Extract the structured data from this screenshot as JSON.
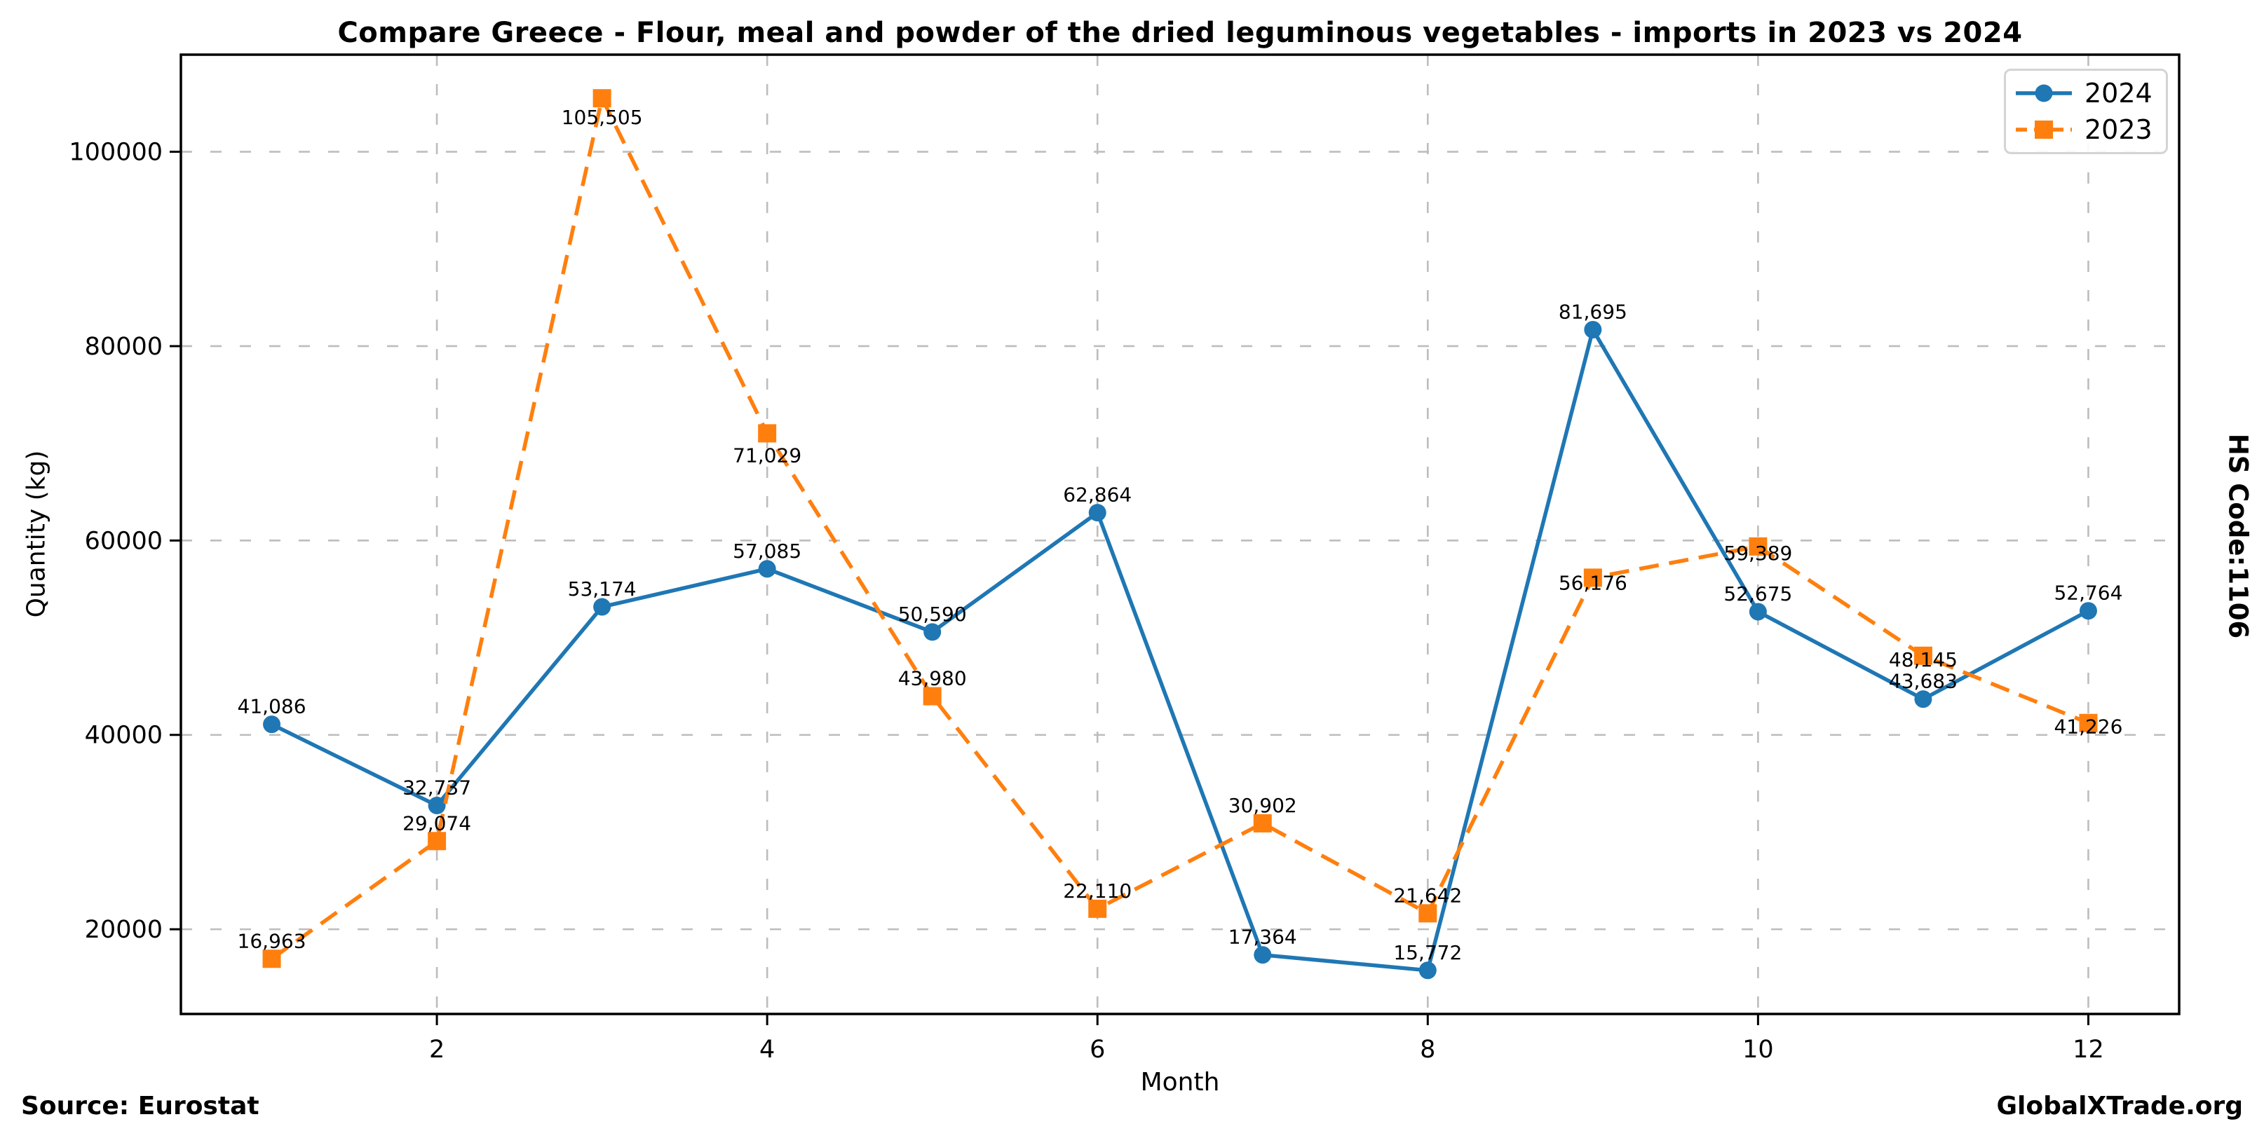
{
  "title_note": "",
  "footer": {
    "source": "Source: Eurostat",
    "brand": "GlobalXTrade.org"
  },
  "side_label": "HS Code:1106",
  "colors": {
    "series_2024": "#1f77b4",
    "series_2023": "#ff7f0e",
    "grid": "#bdbdbd",
    "spine": "#000000",
    "text": "#000000"
  },
  "chart_data": {
    "type": "line",
    "title": "Compare Greece - Flour, meal and powder of the dried leguminous vegetables - imports in 2023 vs 2024",
    "xlabel": "Month",
    "ylabel": "Quantity (kg)",
    "x": [
      1,
      2,
      3,
      4,
      5,
      6,
      7,
      8,
      9,
      10,
      11,
      12
    ],
    "xticks": [
      2,
      4,
      6,
      8,
      10,
      12
    ],
    "yticks": [
      20000,
      40000,
      60000,
      80000,
      100000
    ],
    "xlim": [
      0.45,
      12.55
    ],
    "ylim": [
      11285,
      109992
    ],
    "grid": true,
    "grid_style": "dashed",
    "legend_position": "top-right",
    "series": [
      {
        "name": "2024",
        "color": "#1f77b4",
        "line_style": "solid",
        "marker": "circle",
        "values": [
          41086,
          32737,
          53174,
          57085,
          50590,
          62864,
          17364,
          15772,
          81695,
          52675,
          43683,
          52764
        ]
      },
      {
        "name": "2023",
        "color": "#ff7f0e",
        "line_style": "dashed",
        "marker": "square",
        "values": [
          16963,
          29074,
          105505,
          71029,
          43980,
          22110,
          30902,
          21642,
          56176,
          59389,
          48145,
          41226
        ]
      }
    ]
  }
}
